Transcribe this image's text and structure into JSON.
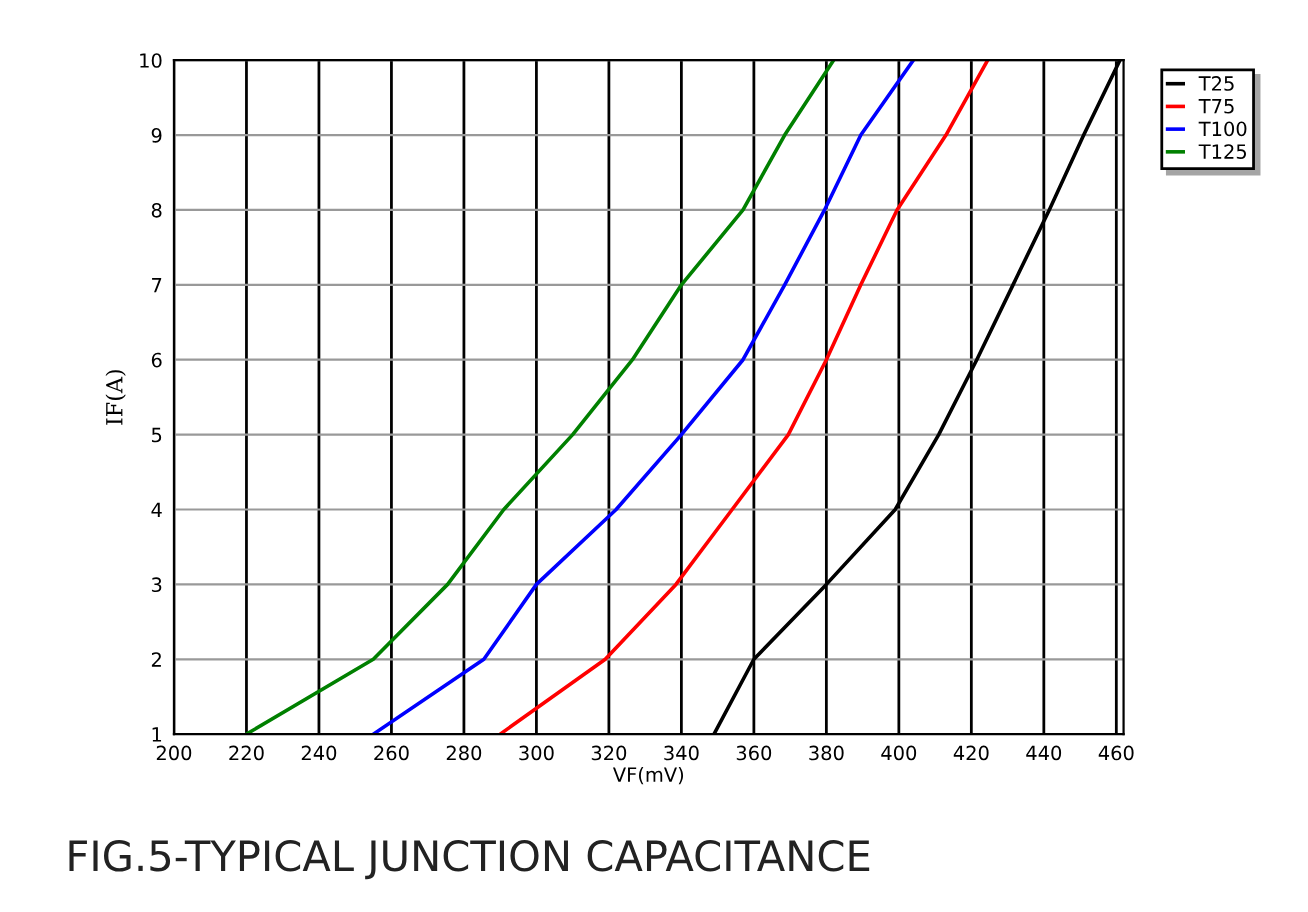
{
  "chart_data": {
    "type": "line",
    "title": "FIG.5-TYPICAL JUNCTION CAPACITANCE",
    "xlabel": "VF(mV)",
    "ylabel": "IF(A)",
    "series": [
      {
        "name": "T25",
        "color": "#000000",
        "x": [
          349,
          360,
          380,
          399,
          411,
          421.5,
          431.5,
          441.5,
          451,
          461
        ],
        "values": [
          1,
          2,
          3,
          4,
          5,
          6,
          7,
          8,
          9,
          10
        ]
      },
      {
        "name": "T75",
        "color": "#ff0000",
        "x": [
          290,
          319,
          338.5,
          354,
          369.5,
          380,
          389.5,
          399.5,
          413,
          424.5
        ],
        "values": [
          1,
          2,
          3,
          4,
          5,
          6,
          7,
          8,
          9,
          10
        ]
      },
      {
        "name": "T100",
        "color": "#0000ff",
        "x": [
          255,
          285.5,
          300,
          322,
          340,
          357,
          368.5,
          379.5,
          389.5,
          404
        ],
        "values": [
          1,
          2,
          3,
          4,
          5,
          6,
          7,
          8,
          9,
          10
        ]
      },
      {
        "name": "T125",
        "color": "#008000",
        "x": [
          220,
          255,
          275.5,
          291,
          310,
          326.5,
          340,
          357,
          368.5,
          382
        ],
        "values": [
          1,
          2,
          3,
          4,
          5,
          6,
          7,
          8,
          9,
          10
        ]
      }
    ],
    "xlim": [
      200,
      462
    ],
    "ylim": [
      1,
      10
    ],
    "xticks": [
      200,
      220,
      240,
      260,
      280,
      300,
      320,
      340,
      360,
      380,
      400,
      420,
      440,
      460
    ],
    "yticks": [
      1,
      2,
      3,
      4,
      5,
      6,
      7,
      8,
      9,
      10
    ],
    "grid": true,
    "legend": "top right",
    "marker": "none",
    "line_style": "solid"
  }
}
